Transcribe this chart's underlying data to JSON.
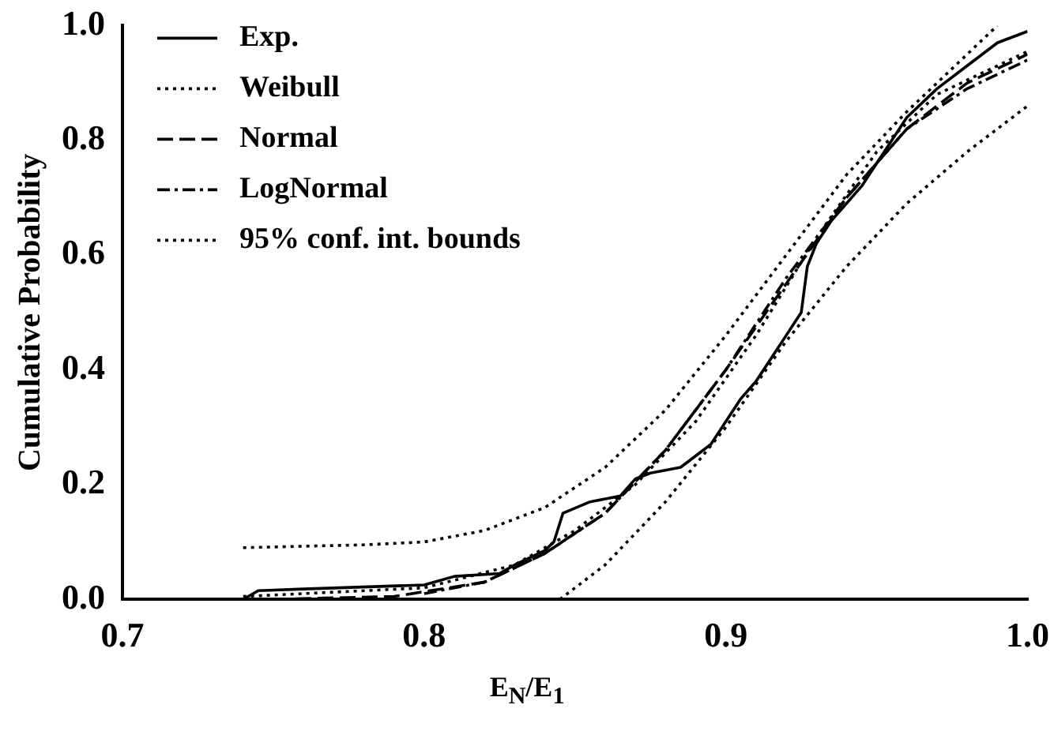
{
  "chart_data": {
    "type": "line",
    "xlabel": "E$_{N}$/E$_{1}$",
    "ylabel": "Cumulative Probability",
    "xlim": [
      0.7,
      1.0
    ],
    "xticks": [
      0.7,
      0.8,
      0.9,
      {
        "value": 1,
        "label": "1.0"
      }
    ],
    "ylim": [
      0,
      1.0
    ],
    "yticks": [
      {
        "value": 0,
        "label": "0.0"
      },
      0.2,
      0.4,
      0.6,
      0.8,
      {
        "value": 1,
        "label": "1.0"
      }
    ],
    "grid": false,
    "legend": "top left",
    "marker": "none",
    "series": [
      {
        "name": "Exp.",
        "color": "#000000",
        "line_style": "solid",
        "x": [
          0.74,
          0.745,
          0.76,
          0.8,
          0.81,
          0.825,
          0.83,
          0.84,
          0.843,
          0.846,
          0.855,
          0.865,
          0.87,
          0.875,
          0.885,
          0.895,
          0.905,
          0.91,
          0.915,
          0.92,
          0.925,
          0.927,
          0.93,
          0.935,
          0.945,
          0.955,
          0.96,
          0.97,
          0.98,
          0.99,
          1.0
        ],
        "values": [
          0.0,
          0.015,
          0.018,
          0.025,
          0.04,
          0.045,
          0.06,
          0.085,
          0.1,
          0.15,
          0.17,
          0.18,
          0.21,
          0.22,
          0.23,
          0.27,
          0.35,
          0.38,
          0.42,
          0.46,
          0.5,
          0.58,
          0.62,
          0.66,
          0.72,
          0.8,
          0.84,
          0.89,
          0.93,
          0.97,
          0.99
        ]
      },
      {
        "name": "Weibull",
        "color": "#000000",
        "line_style": "dotted",
        "x": [
          0.74,
          0.8,
          0.83,
          0.85,
          0.87,
          0.89,
          0.91,
          0.93,
          0.95,
          0.97,
          0.99,
          1.0
        ],
        "values": [
          0.005,
          0.02,
          0.06,
          0.12,
          0.2,
          0.31,
          0.46,
          0.63,
          0.78,
          0.88,
          0.93,
          0.955
        ]
      },
      {
        "name": "Normal",
        "color": "#000000",
        "line_style": "dashed",
        "x": [
          0.75,
          0.79,
          0.82,
          0.84,
          0.86,
          0.88,
          0.9,
          0.92,
          0.94,
          0.96,
          0.98,
          1.0
        ],
        "values": [
          0.0,
          0.005,
          0.03,
          0.08,
          0.15,
          0.26,
          0.4,
          0.55,
          0.7,
          0.82,
          0.9,
          0.95
        ]
      },
      {
        "name": "LogNormal",
        "color": "#000000",
        "line_style": "dashdot",
        "x": [
          0.8,
          0.82,
          0.84,
          0.86,
          0.88,
          0.9,
          0.92,
          0.94,
          0.96,
          0.98,
          1.0
        ],
        "values": [
          0.01,
          0.03,
          0.08,
          0.15,
          0.26,
          0.4,
          0.56,
          0.7,
          0.82,
          0.89,
          0.94
        ]
      },
      {
        "name": "95% conf. int. bounds",
        "color": "#000000",
        "line_style": "dotted",
        "x": [
          0.74,
          0.78,
          0.8,
          0.82,
          0.84,
          0.86,
          0.88,
          0.9,
          0.92,
          0.94,
          0.96,
          0.98,
          0.99
        ],
        "values": [
          0.09,
          0.095,
          0.1,
          0.12,
          0.16,
          0.23,
          0.33,
          0.46,
          0.6,
          0.74,
          0.85,
          0.95,
          1.0
        ]
      },
      {
        "color": "#000000",
        "line_style": "dotted",
        "x": [
          0.845,
          0.86,
          0.88,
          0.9,
          0.92,
          0.94,
          0.96,
          0.98,
          1.0
        ],
        "values": [
          0.0,
          0.06,
          0.17,
          0.3,
          0.45,
          0.58,
          0.69,
          0.78,
          0.86
        ]
      }
    ]
  }
}
